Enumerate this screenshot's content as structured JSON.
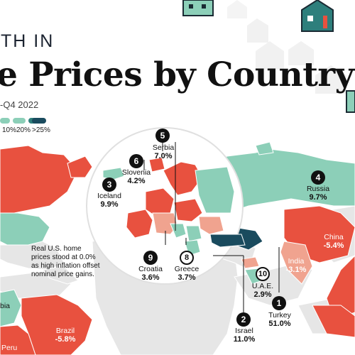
{
  "title": {
    "line1_partial": "TH IN",
    "line2_partial": "e Prices by Country",
    "period_partial": "-Q4 2022"
  },
  "legend": {
    "colors": {
      "negative": "#e8513f",
      "low": "#f0a38f",
      "mid": "#8ccfb8",
      "high": "#2e7f7c",
      "top": "#1a4b5e"
    },
    "labels": [
      "10%",
      "20%",
      ">25%"
    ]
  },
  "countries": {
    "serbia": {
      "rank": "5",
      "name": "Serbia",
      "value": "7.0%"
    },
    "slovenia": {
      "rank": "6",
      "name": "Slovenia",
      "value": "4.2%"
    },
    "iceland": {
      "rank": "3",
      "name": "Iceland",
      "value": "9.9%"
    },
    "russia": {
      "rank": "4",
      "name": "Russia",
      "value": "9.7%"
    },
    "croatia": {
      "rank": "9",
      "name": "Croatia",
      "value": "3.6%"
    },
    "greece": {
      "rank": "8",
      "name": "Greece",
      "value": "3.7%"
    },
    "uae": {
      "rank": "10",
      "name": "U.A.E.",
      "value": "2.9%"
    },
    "turkey": {
      "rank": "1",
      "name": "Turkey",
      "value": "51.0%"
    },
    "israel": {
      "rank": "2",
      "name": "Israel",
      "value": "11.0%"
    },
    "china": {
      "name": "China",
      "value": "-5.4%"
    },
    "india": {
      "name": "India",
      "value": "-3.1%"
    },
    "brazil": {
      "name": "Brazil",
      "value": "-5.8%"
    },
    "peru": {
      "name": "Peru",
      "value": ""
    },
    "partial_left": {
      "name": "bia",
      "value": ""
    }
  },
  "note": {
    "line1": "Real U.S. home",
    "line2": "prices stood at 0.0%",
    "line3": "as high inflation offset",
    "line4": "nominal price gains."
  }
}
